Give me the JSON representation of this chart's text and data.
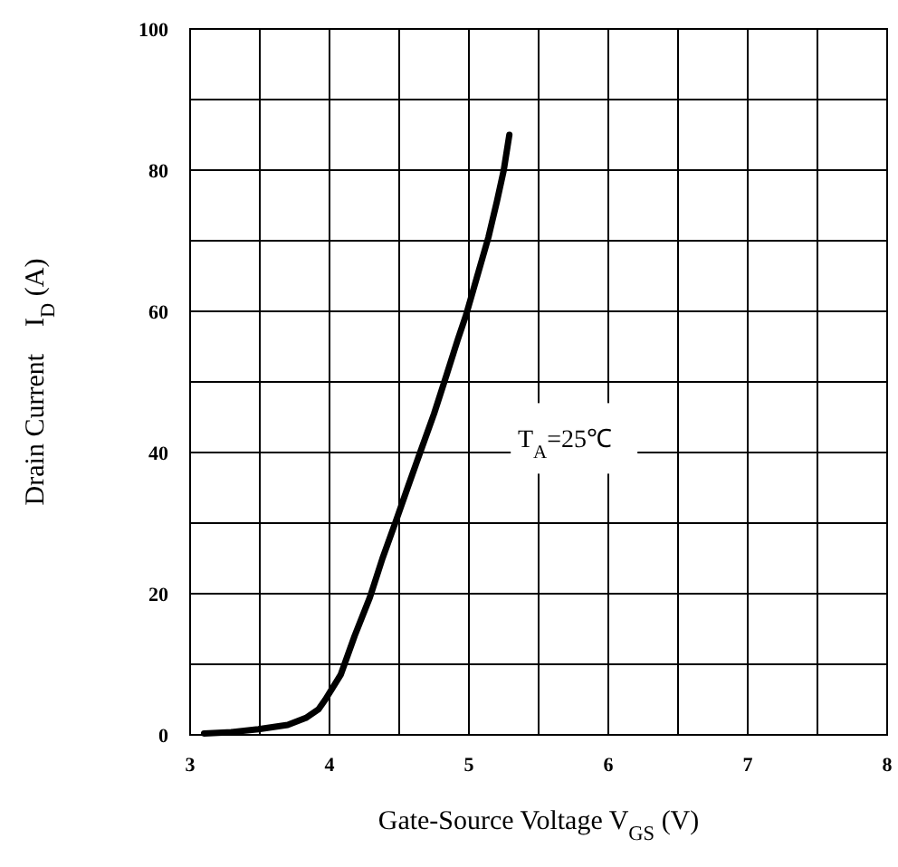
{
  "chart_data": {
    "type": "line",
    "xlabel": "Gate-Source Voltage V$_{GS}$ (V)",
    "ylabel": "Drain Current    I$_{D}$ (A)",
    "annotations": [
      "T$_{A}$=25℃"
    ],
    "x": [
      3.1,
      3.3,
      3.49,
      3.7,
      3.83,
      3.92,
      3.97,
      4.08,
      4.18,
      4.29,
      4.38,
      4.48,
      4.56,
      4.65,
      4.75,
      4.84,
      4.92,
      4.98,
      5.06,
      5.14,
      5.2,
      5.25,
      5.29
    ],
    "series": [
      {
        "color": "#000000",
        "values": [
          0.2,
          0.4,
          0.8,
          1.4,
          2.4,
          3.6,
          5,
          8.5,
          14,
          19.5,
          25,
          30.5,
          35,
          40,
          45.5,
          51,
          56,
          59.5,
          65,
          70.5,
          75.5,
          80,
          85
        ]
      }
    ],
    "xlim": [
      3,
      8
    ],
    "ylim": [
      0,
      100
    ],
    "xticks": [
      3,
      4,
      5,
      6,
      7,
      8
    ],
    "yticks": [
      0,
      20,
      40,
      60,
      80,
      100
    ],
    "grid": true,
    "marker": "none",
    "line_style": "solid"
  }
}
